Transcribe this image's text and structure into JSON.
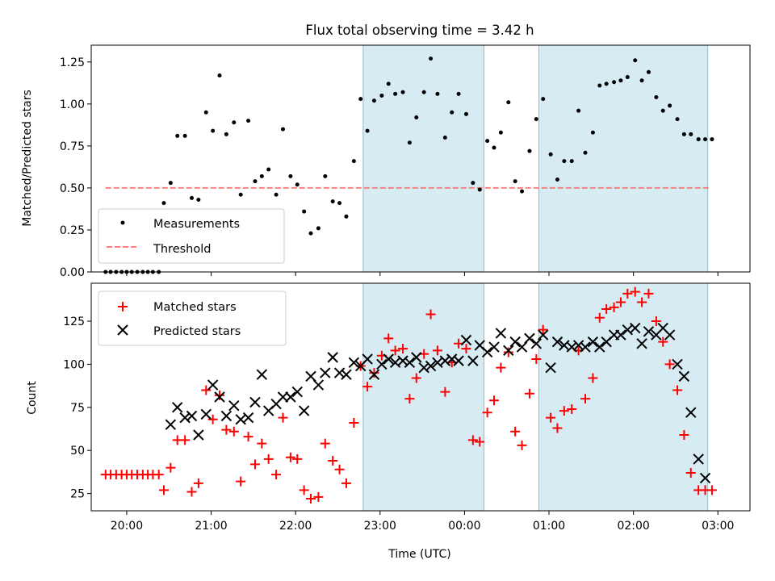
{
  "chart_data": [
    {
      "type": "scatter",
      "title": "Flux total observing time = 3.42 h",
      "xlabel": "",
      "ylabel": "Matched/Predicted stars",
      "xlim": [
        -0.42,
        7.38
      ],
      "ylim": [
        0,
        1.35
      ],
      "yticks": [
        0,
        0.25,
        0.5,
        0.75,
        1.0,
        1.25
      ],
      "ytick_labels": [
        "0.00",
        "0.25",
        "0.50",
        "0.75",
        "1.00",
        "1.25"
      ],
      "grid": false,
      "legend_position": "lower-left",
      "shaded_intervals": [
        [
          2.8,
          4.23
        ],
        [
          4.88,
          6.88
        ]
      ],
      "series": [
        {
          "name": "Measurements",
          "marker": "dot",
          "color": "#000000",
          "x": [
            -0.25,
            -0.19,
            -0.125,
            -0.06,
            0.0,
            0.06,
            0.125,
            0.19,
            0.25,
            0.31,
            0.38,
            0.44,
            0.52,
            0.6,
            0.69,
            0.77,
            0.85,
            0.94,
            1.02,
            1.1,
            1.18,
            1.27,
            1.35,
            1.44,
            1.52,
            1.6,
            1.68,
            1.77,
            1.85,
            1.94,
            2.02,
            2.1,
            2.18,
            2.27,
            2.35,
            2.44,
            2.52,
            2.6,
            2.69,
            2.77,
            2.85,
            2.93,
            3.02,
            3.1,
            3.18,
            3.27,
            3.35,
            3.43,
            3.52,
            3.6,
            3.68,
            3.77,
            3.85,
            3.93,
            4.02,
            4.1,
            4.18,
            4.27,
            4.35,
            4.43,
            4.52,
            4.6,
            4.68,
            4.77,
            4.85,
            4.93,
            5.02,
            5.1,
            5.18,
            5.27,
            5.35,
            5.43,
            5.52,
            5.6,
            5.68,
            5.77,
            5.85,
            5.93,
            6.02,
            6.1,
            6.18,
            6.27,
            6.35,
            6.43,
            6.52,
            6.6,
            6.68,
            6.77,
            6.85,
            6.93
          ],
          "y": [
            0.0,
            0.0,
            0.0,
            0.0,
            0.0,
            0.0,
            0.0,
            0.0,
            0.0,
            0.0,
            0.0,
            0.41,
            0.53,
            0.81,
            0.81,
            0.44,
            0.43,
            0.95,
            0.84,
            1.17,
            0.82,
            0.89,
            0.46,
            0.9,
            0.54,
            0.57,
            0.61,
            0.46,
            0.85,
            0.57,
            0.52,
            0.36,
            0.23,
            0.26,
            0.57,
            0.42,
            0.41,
            0.33,
            0.66,
            1.03,
            0.84,
            1.02,
            1.05,
            1.12,
            1.06,
            1.07,
            0.77,
            0.92,
            1.07,
            1.27,
            1.06,
            0.8,
            0.95,
            1.06,
            0.94,
            0.53,
            0.49,
            0.78,
            0.74,
            0.83,
            1.01,
            0.54,
            0.48,
            0.72,
            0.91,
            1.03,
            0.7,
            0.55,
            0.66,
            0.66,
            0.96,
            0.71,
            0.83,
            1.11,
            1.12,
            1.13,
            1.14,
            1.16,
            1.26,
            1.14,
            1.19,
            1.04,
            0.96,
            0.99,
            0.91,
            0.82,
            0.82,
            0.79,
            0.79,
            0.79
          ]
        },
        {
          "name": "Threshold",
          "marker": "dashed-line",
          "color": "#ff7f7f",
          "x": [
            -0.25,
            6.9
          ],
          "y": [
            0.5,
            0.5
          ]
        }
      ]
    },
    {
      "type": "scatter",
      "title": "",
      "xlabel": "Time (UTC)",
      "ylabel": "Count",
      "xlim": [
        -0.42,
        7.38
      ],
      "ylim": [
        15,
        147
      ],
      "x_ticks": [
        0,
        1,
        2,
        3,
        4,
        5,
        6,
        7
      ],
      "x_tick_labels": [
        "20:00",
        "21:00",
        "22:00",
        "23:00",
        "00:00",
        "01:00",
        "02:00",
        "03:00"
      ],
      "yticks": [
        25,
        50,
        75,
        100,
        125
      ],
      "ytick_labels": [
        "25",
        "50",
        "75",
        "100",
        "125"
      ],
      "grid": false,
      "legend_position": "upper-left",
      "shaded_intervals": [
        [
          2.8,
          4.23
        ],
        [
          4.88,
          6.88
        ]
      ],
      "series": [
        {
          "name": "Matched stars",
          "marker": "plus",
          "color": "#ff0000",
          "x": [
            -0.25,
            -0.19,
            -0.125,
            -0.06,
            0.0,
            0.06,
            0.125,
            0.19,
            0.25,
            0.31,
            0.38,
            0.44,
            0.52,
            0.6,
            0.69,
            0.77,
            0.85,
            0.94,
            1.02,
            1.1,
            1.18,
            1.27,
            1.35,
            1.44,
            1.52,
            1.6,
            1.68,
            1.77,
            1.85,
            1.94,
            2.02,
            2.1,
            2.18,
            2.27,
            2.35,
            2.44,
            2.52,
            2.6,
            2.69,
            2.77,
            2.85,
            2.93,
            3.02,
            3.1,
            3.18,
            3.27,
            3.35,
            3.43,
            3.52,
            3.6,
            3.68,
            3.77,
            3.85,
            3.93,
            4.02,
            4.1,
            4.18,
            4.27,
            4.35,
            4.43,
            4.52,
            4.6,
            4.68,
            4.77,
            4.85,
            4.93,
            5.02,
            5.1,
            5.18,
            5.27,
            5.35,
            5.43,
            5.52,
            5.6,
            5.68,
            5.77,
            5.85,
            5.93,
            6.02,
            6.1,
            6.18,
            6.27,
            6.35,
            6.43,
            6.52,
            6.6,
            6.68,
            6.77,
            6.85,
            6.93
          ],
          "y": [
            36,
            36,
            36,
            36,
            36,
            36,
            36,
            36,
            36,
            36,
            36,
            27,
            40,
            56,
            56,
            26,
            31,
            85,
            68,
            82,
            62,
            61,
            32,
            58,
            42,
            54,
            45,
            36,
            69,
            46,
            45,
            27,
            22,
            23,
            54,
            44,
            39,
            31,
            66,
            99,
            87,
            95,
            105,
            115,
            108,
            109,
            80,
            92,
            106,
            129,
            108,
            84,
            101,
            112,
            109,
            56,
            55,
            72,
            79,
            98,
            107,
            61,
            53,
            83,
            103,
            120,
            69,
            63,
            73,
            74,
            108,
            80,
            92,
            127,
            132,
            133,
            136,
            141,
            142,
            136,
            141,
            125,
            113,
            100,
            85,
            59,
            37,
            27,
            27,
            27
          ]
        },
        {
          "name": "Predicted stars",
          "marker": "x",
          "color": "#000000",
          "x": [
            0.52,
            0.6,
            0.69,
            0.77,
            0.85,
            0.94,
            1.02,
            1.1,
            1.18,
            1.27,
            1.35,
            1.44,
            1.52,
            1.6,
            1.68,
            1.77,
            1.85,
            1.94,
            2.02,
            2.1,
            2.18,
            2.27,
            2.35,
            2.44,
            2.52,
            2.6,
            2.69,
            2.77,
            2.85,
            2.93,
            3.02,
            3.1,
            3.18,
            3.27,
            3.35,
            3.43,
            3.52,
            3.6,
            3.68,
            3.77,
            3.85,
            3.93,
            4.02,
            4.1,
            4.18,
            4.27,
            4.35,
            4.43,
            4.52,
            4.6,
            4.68,
            4.77,
            4.85,
            4.93,
            5.02,
            5.1,
            5.18,
            5.27,
            5.35,
            5.43,
            5.52,
            5.6,
            5.68,
            5.77,
            5.85,
            5.93,
            6.02,
            6.1,
            6.18,
            6.27,
            6.35,
            6.43,
            6.52,
            6.6,
            6.68,
            6.77,
            6.85
          ],
          "y": [
            65,
            75,
            69,
            70,
            59,
            71,
            88,
            81,
            70,
            76,
            68,
            69,
            78,
            94,
            73,
            77,
            81,
            81,
            84,
            73,
            93,
            88,
            95,
            104,
            95,
            94,
            101,
            99,
            103,
            94,
            100,
            103,
            101,
            102,
            101,
            104,
            98,
            99,
            101,
            102,
            103,
            102,
            114,
            102,
            111,
            107,
            110,
            118,
            108,
            113,
            110,
            115,
            112,
            117,
            98,
            113,
            111,
            110,
            111,
            110,
            113,
            110,
            113,
            117,
            117,
            120,
            121,
            112,
            119,
            117,
            121,
            117,
            100,
            93,
            72,
            45,
            34
          ]
        }
      ]
    }
  ]
}
